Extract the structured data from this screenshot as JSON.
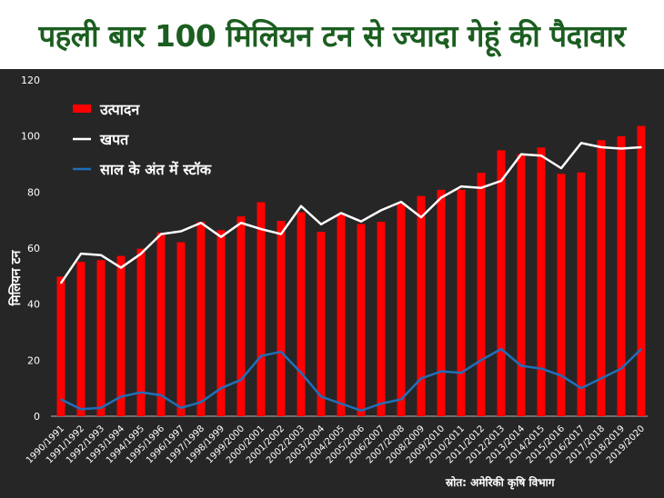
{
  "title": "पहली बार 100 मिलियन टन से ज्यादा गेहूं की पैदावार",
  "source": "स्रोत: अमेरिकी कृषि विभाग",
  "colors": {
    "production": "#ff0000",
    "consumption": "#ffffff",
    "stock": "#1f6fb8",
    "background": "#262626",
    "title": "#1b5e20"
  },
  "chart_data": {
    "type": "bar",
    "title": "पहली बार 100 मिलियन टन से ज्यादा गेहूं की पैदावार",
    "xlabel": "",
    "ylabel": "मिलियन टन",
    "ylim": [
      0,
      120
    ],
    "yticks": [
      "0",
      "20",
      "40",
      "60",
      "80",
      "100",
      "120"
    ],
    "legend_position": "top-left",
    "categories": [
      "1990/1991",
      "1991/1992",
      "1992/1993",
      "1993/1994",
      "1994/1995",
      "1995/1996",
      "1996/1997",
      "1997/1998",
      "1998/1999",
      "1999/2000",
      "2000/2001",
      "2001/2002",
      "2002/2003",
      "2003/2004",
      "2004/2005",
      "2005/2006",
      "2006/2007",
      "2007/2008",
      "2008/2009",
      "2009/2010",
      "2010/2011",
      "2011/2012",
      "2012/2013",
      "2013/2014",
      "2014/2015",
      "2015/2016",
      "2016/2017",
      "2017/2018",
      "2018/2019",
      "2019/2020"
    ],
    "series": [
      {
        "name": "उत्पादन",
        "type": "bar",
        "values": [
          49.8,
          55.1,
          55.7,
          57.2,
          59.8,
          65.5,
          62.1,
          69.4,
          66.4,
          71.3,
          76.4,
          69.7,
          72.8,
          65.8,
          72.2,
          68.6,
          69.4,
          75.8,
          78.6,
          80.8,
          80.8,
          86.9,
          94.9,
          93.5,
          95.9,
          86.5,
          87.0,
          98.5,
          99.9,
          103.6
        ]
      },
      {
        "name": "खपत",
        "type": "line",
        "values": [
          47.5,
          58,
          57.5,
          53,
          58,
          65,
          66,
          69,
          64,
          69,
          66.8,
          65,
          75,
          68.5,
          72.5,
          69.5,
          73.5,
          76.5,
          71,
          78,
          82,
          81.5,
          84,
          93.5,
          93,
          88.5,
          97.5,
          96,
          95.5,
          96
        ]
      },
      {
        "name": "साल के अंत में स्टॉक",
        "type": "line",
        "values": [
          6,
          2.5,
          3,
          7,
          8.5,
          7.5,
          3,
          5,
          10,
          13,
          21.5,
          23,
          15.5,
          7,
          4.5,
          2,
          4.5,
          6,
          13.5,
          16,
          15.5,
          20,
          24,
          18,
          17,
          14.5,
          10,
          13.5,
          17,
          24
        ]
      }
    ]
  }
}
